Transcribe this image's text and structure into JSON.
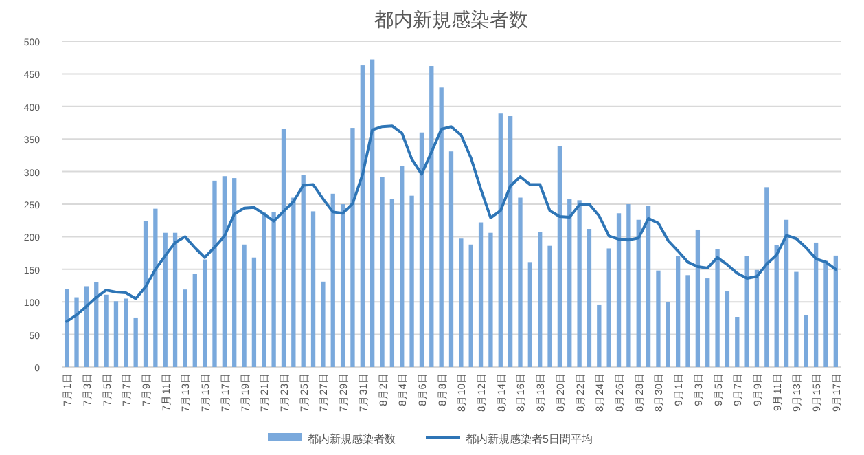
{
  "chart_data": {
    "type": "bar",
    "title": "都内新規感染者数",
    "categories": [
      "7月1日",
      null,
      "7月3日",
      null,
      "7月5日",
      null,
      "7月7日",
      null,
      "7月9日",
      null,
      "7月11日",
      null,
      "7月13日",
      null,
      "7月15日",
      null,
      "7月17日",
      null,
      "7月19日",
      null,
      "7月21日",
      null,
      "7月23日",
      null,
      "7月25日",
      null,
      "7月27日",
      null,
      "7月29日",
      null,
      "7月31日",
      null,
      "8月2日",
      null,
      "8月4日",
      null,
      "8月6日",
      null,
      "8月8日",
      null,
      "8月10日",
      null,
      "8月12日",
      null,
      "8月14日",
      null,
      "8月16日",
      null,
      "8月18日",
      null,
      "8月20日",
      null,
      "8月22日",
      null,
      "8月24日",
      null,
      "8月26日",
      null,
      "8月28日",
      null,
      "8月30日",
      null,
      "9月1日",
      null,
      "9月3日",
      null,
      "9月5日",
      null,
      "9月7日",
      null,
      "9月9日",
      null,
      "9月11日",
      null,
      "9月13日",
      null,
      "9月15日",
      null,
      "9月17日"
    ],
    "series": [
      {
        "name": "都内新規感染者数",
        "color": "#7aa9dc",
        "values": [
          120,
          107,
          124,
          130,
          111,
          101,
          105,
          76,
          224,
          243,
          206,
          206,
          119,
          143,
          165,
          286,
          293,
          290,
          188,
          168,
          237,
          238,
          366,
          260,
          295,
          239,
          131,
          266,
          250,
          367,
          463,
          472,
          292,
          258,
          309,
          263,
          360,
          462,
          429,
          331,
          197,
          188,
          222,
          206,
          389,
          385,
          260,
          161,
          207,
          186,
          339,
          258,
          256,
          212,
          95,
          182,
          236,
          250,
          226,
          247,
          148,
          100,
          170,
          141,
          211,
          136,
          181,
          116,
          77,
          170,
          149,
          276,
          187,
          226,
          146,
          80,
          191,
          163,
          171
        ]
      },
      {
        "name": "都内新規感染者5日間平均",
        "type": "line",
        "color": "#2e75b6",
        "values": [
          70,
          80,
          93,
          107,
          118,
          115,
          114,
          105,
          123,
          150,
          171,
          191,
          200,
          183,
          168,
          184,
          201,
          235,
          244,
          245,
          235,
          224,
          239,
          254,
          279,
          280,
          258,
          238,
          236,
          251,
          295,
          364,
          369,
          370,
          359,
          319,
          296,
          330,
          365,
          369,
          356,
          321,
          273,
          229,
          240,
          278,
          292,
          280,
          280,
          240,
          231,
          230,
          249,
          250,
          232,
          201,
          196,
          195,
          198,
          228,
          221,
          194,
          178,
          161,
          154,
          152,
          168,
          157,
          144,
          136,
          139,
          158,
          172,
          202,
          197,
          183,
          166,
          161,
          150
        ]
      }
    ],
    "ylim": [
      0,
      500
    ],
    "yticks": [
      0,
      50,
      100,
      150,
      200,
      250,
      300,
      350,
      400,
      450,
      500
    ],
    "grid": "y",
    "legend": "bottom"
  }
}
